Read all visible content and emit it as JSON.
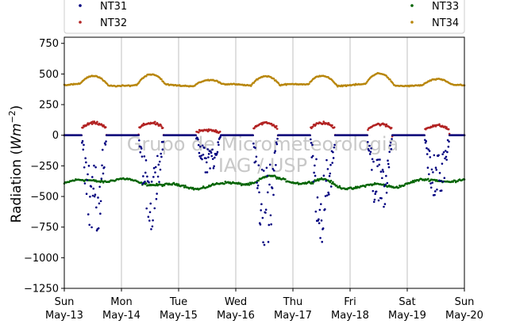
{
  "chart_data": {
    "type": "scatter",
    "xlabel": "",
    "ylabel_main": "Radiation (",
    "ylabel_unit_base": "Wm",
    "ylabel_unit_exp": "−2",
    "ylabel_close": ")",
    "ylim": [
      -1250,
      800
    ],
    "xlim_days": [
      0,
      7
    ],
    "yticks": [
      750,
      500,
      250,
      0,
      -250,
      -500,
      -750,
      -1000,
      -1250
    ],
    "ytick_labels": [
      "750",
      "500",
      "250",
      "0",
      "−250",
      "−500",
      "−750",
      "−1000",
      "−1250"
    ],
    "x_ticks": [
      {
        "day": "Sun",
        "date": "May-13"
      },
      {
        "day": "Mon",
        "date": "May-14"
      },
      {
        "day": "Tue",
        "date": "May-15"
      },
      {
        "day": "Wed",
        "date": "May-16"
      },
      {
        "day": "Thu",
        "date": "May-17"
      },
      {
        "day": "Fri",
        "date": "May-18"
      },
      {
        "day": "Sat",
        "date": "May-19"
      },
      {
        "day": "Sun",
        "date": "May-20"
      }
    ],
    "grid": "vertical",
    "legend_placement": "top",
    "watermark": [
      "Grupo de Micrometeorologia",
      "IAG / USP"
    ],
    "series": [
      {
        "name": "NT31",
        "color": "#00007f",
        "daytime_min": [
          -880,
          -790,
          -330,
          -920,
          -890,
          -690,
          -580
        ],
        "night": 0
      },
      {
        "name": "NT32",
        "color": "#b22222",
        "daytime_peak": [
          100,
          100,
          40,
          100,
          100,
          90,
          80
        ],
        "night": 0
      },
      {
        "name": "NT33",
        "color": "#006400",
        "base": -395,
        "range": [
          -460,
          -330
        ]
      },
      {
        "name": "NT34",
        "color": "#b8860b",
        "base": 410,
        "peak": [
          480,
          490,
          450,
          490,
          490,
          500,
          450
        ]
      }
    ]
  }
}
